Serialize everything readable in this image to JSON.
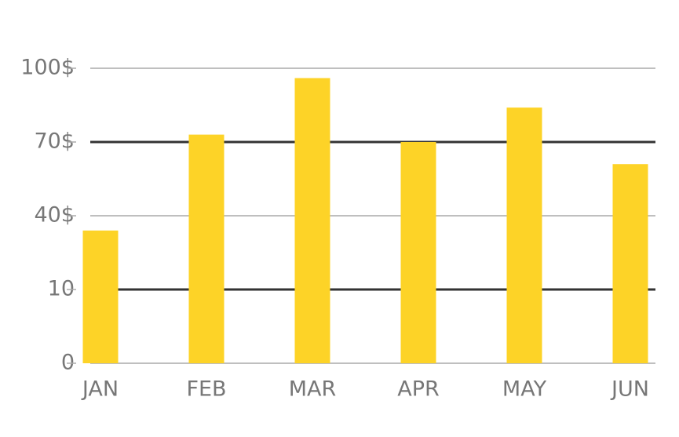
{
  "chart_data": {
    "type": "bar",
    "categories": [
      "JAN",
      "FEB",
      "MAR",
      "APR",
      "MAY",
      "JUN"
    ],
    "values": [
      34,
      73,
      96,
      70,
      84,
      61
    ],
    "color": "#fdd327",
    "ylim": [
      0,
      100
    ],
    "yticks": [
      0,
      10,
      {
        "value": 40,
        "label": "40$"
      },
      {
        "value": 70,
        "label": "70$"
      },
      {
        "value": 100,
        "label": "100$"
      }
    ],
    "grid": true
  }
}
